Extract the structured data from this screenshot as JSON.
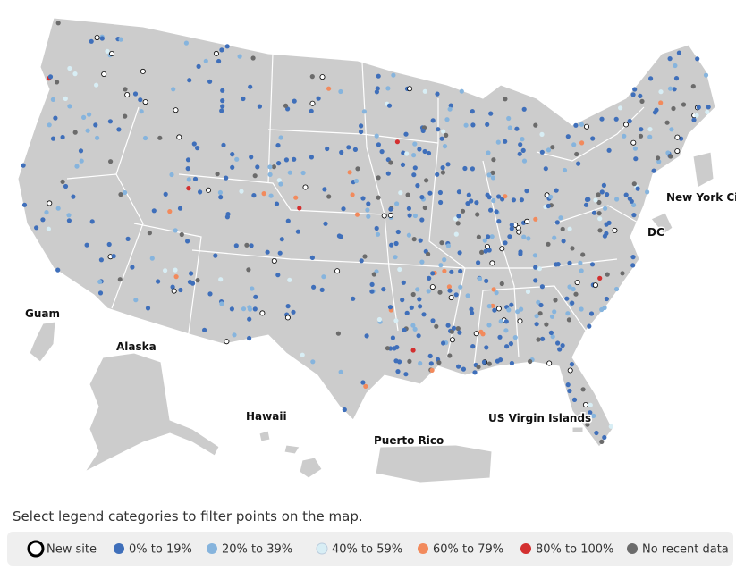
{
  "map": {
    "labels": [
      "Guam",
      "Alaska",
      "Hawaii",
      "Puerto Rico",
      "US Virgin Islands",
      "New York Ci",
      "DC"
    ]
  },
  "hint": "Select legend categories to filter points on the map.",
  "legend": [
    {
      "name": "New site",
      "color": "#ffffff"
    },
    {
      "name": "0% to 19%",
      "color": "#3f6fba"
    },
    {
      "name": "20% to 39%",
      "color": "#86b4dd"
    },
    {
      "name": "40% to 59%",
      "color": "#d8eef5"
    },
    {
      "name": "60% to 79%",
      "color": "#f28a5c"
    },
    {
      "name": "80% to 100%",
      "color": "#d32f2f"
    },
    {
      "name": "No recent data",
      "color": "#6b6b6b"
    }
  ]
}
